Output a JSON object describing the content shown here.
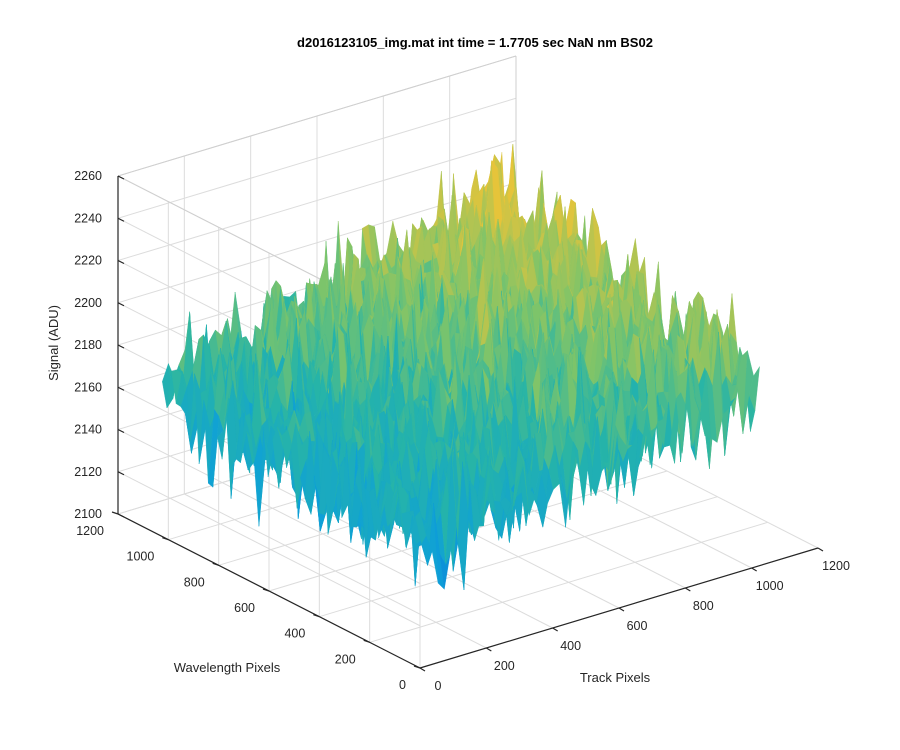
{
  "chart_data": {
    "type": "surface",
    "title": "d2016123105_img.mat int time = 1.7705 sec  NaN nm BS02",
    "xlabel": "Track Pixels",
    "ylabel": "Wavelength Pixels",
    "zlabel": "Signal (ADU)",
    "xlim": [
      0,
      1200
    ],
    "ylim": [
      0,
      1200
    ],
    "zlim": [
      2100,
      2260
    ],
    "x_ticks": [
      0,
      200,
      400,
      600,
      800,
      1000,
      1200
    ],
    "y_ticks": [
      0,
      200,
      400,
      600,
      800,
      1000,
      1200
    ],
    "z_ticks": [
      2100,
      2120,
      2140,
      2160,
      2180,
      2200,
      2220,
      2240,
      2260
    ],
    "grid": true,
    "data_extent": {
      "x": [
        0,
        1024
      ],
      "y": [
        0,
        1024
      ]
    },
    "surface_trend": {
      "corner_values": {
        "x0_y0": 2160,
        "x1024_y0": 2188,
        "x0_y1024": 2168,
        "x1024_y1024": 2215
      },
      "noise_amplitude": 14,
      "color_scale": [
        {
          "value": 2125,
          "color": "#0b64d6"
        },
        {
          "value": 2150,
          "color": "#0ea0d8"
        },
        {
          "value": 2175,
          "color": "#26b4a8"
        },
        {
          "value": 2195,
          "color": "#7dc46a"
        },
        {
          "value": 2220,
          "color": "#e6c43a"
        }
      ]
    }
  }
}
